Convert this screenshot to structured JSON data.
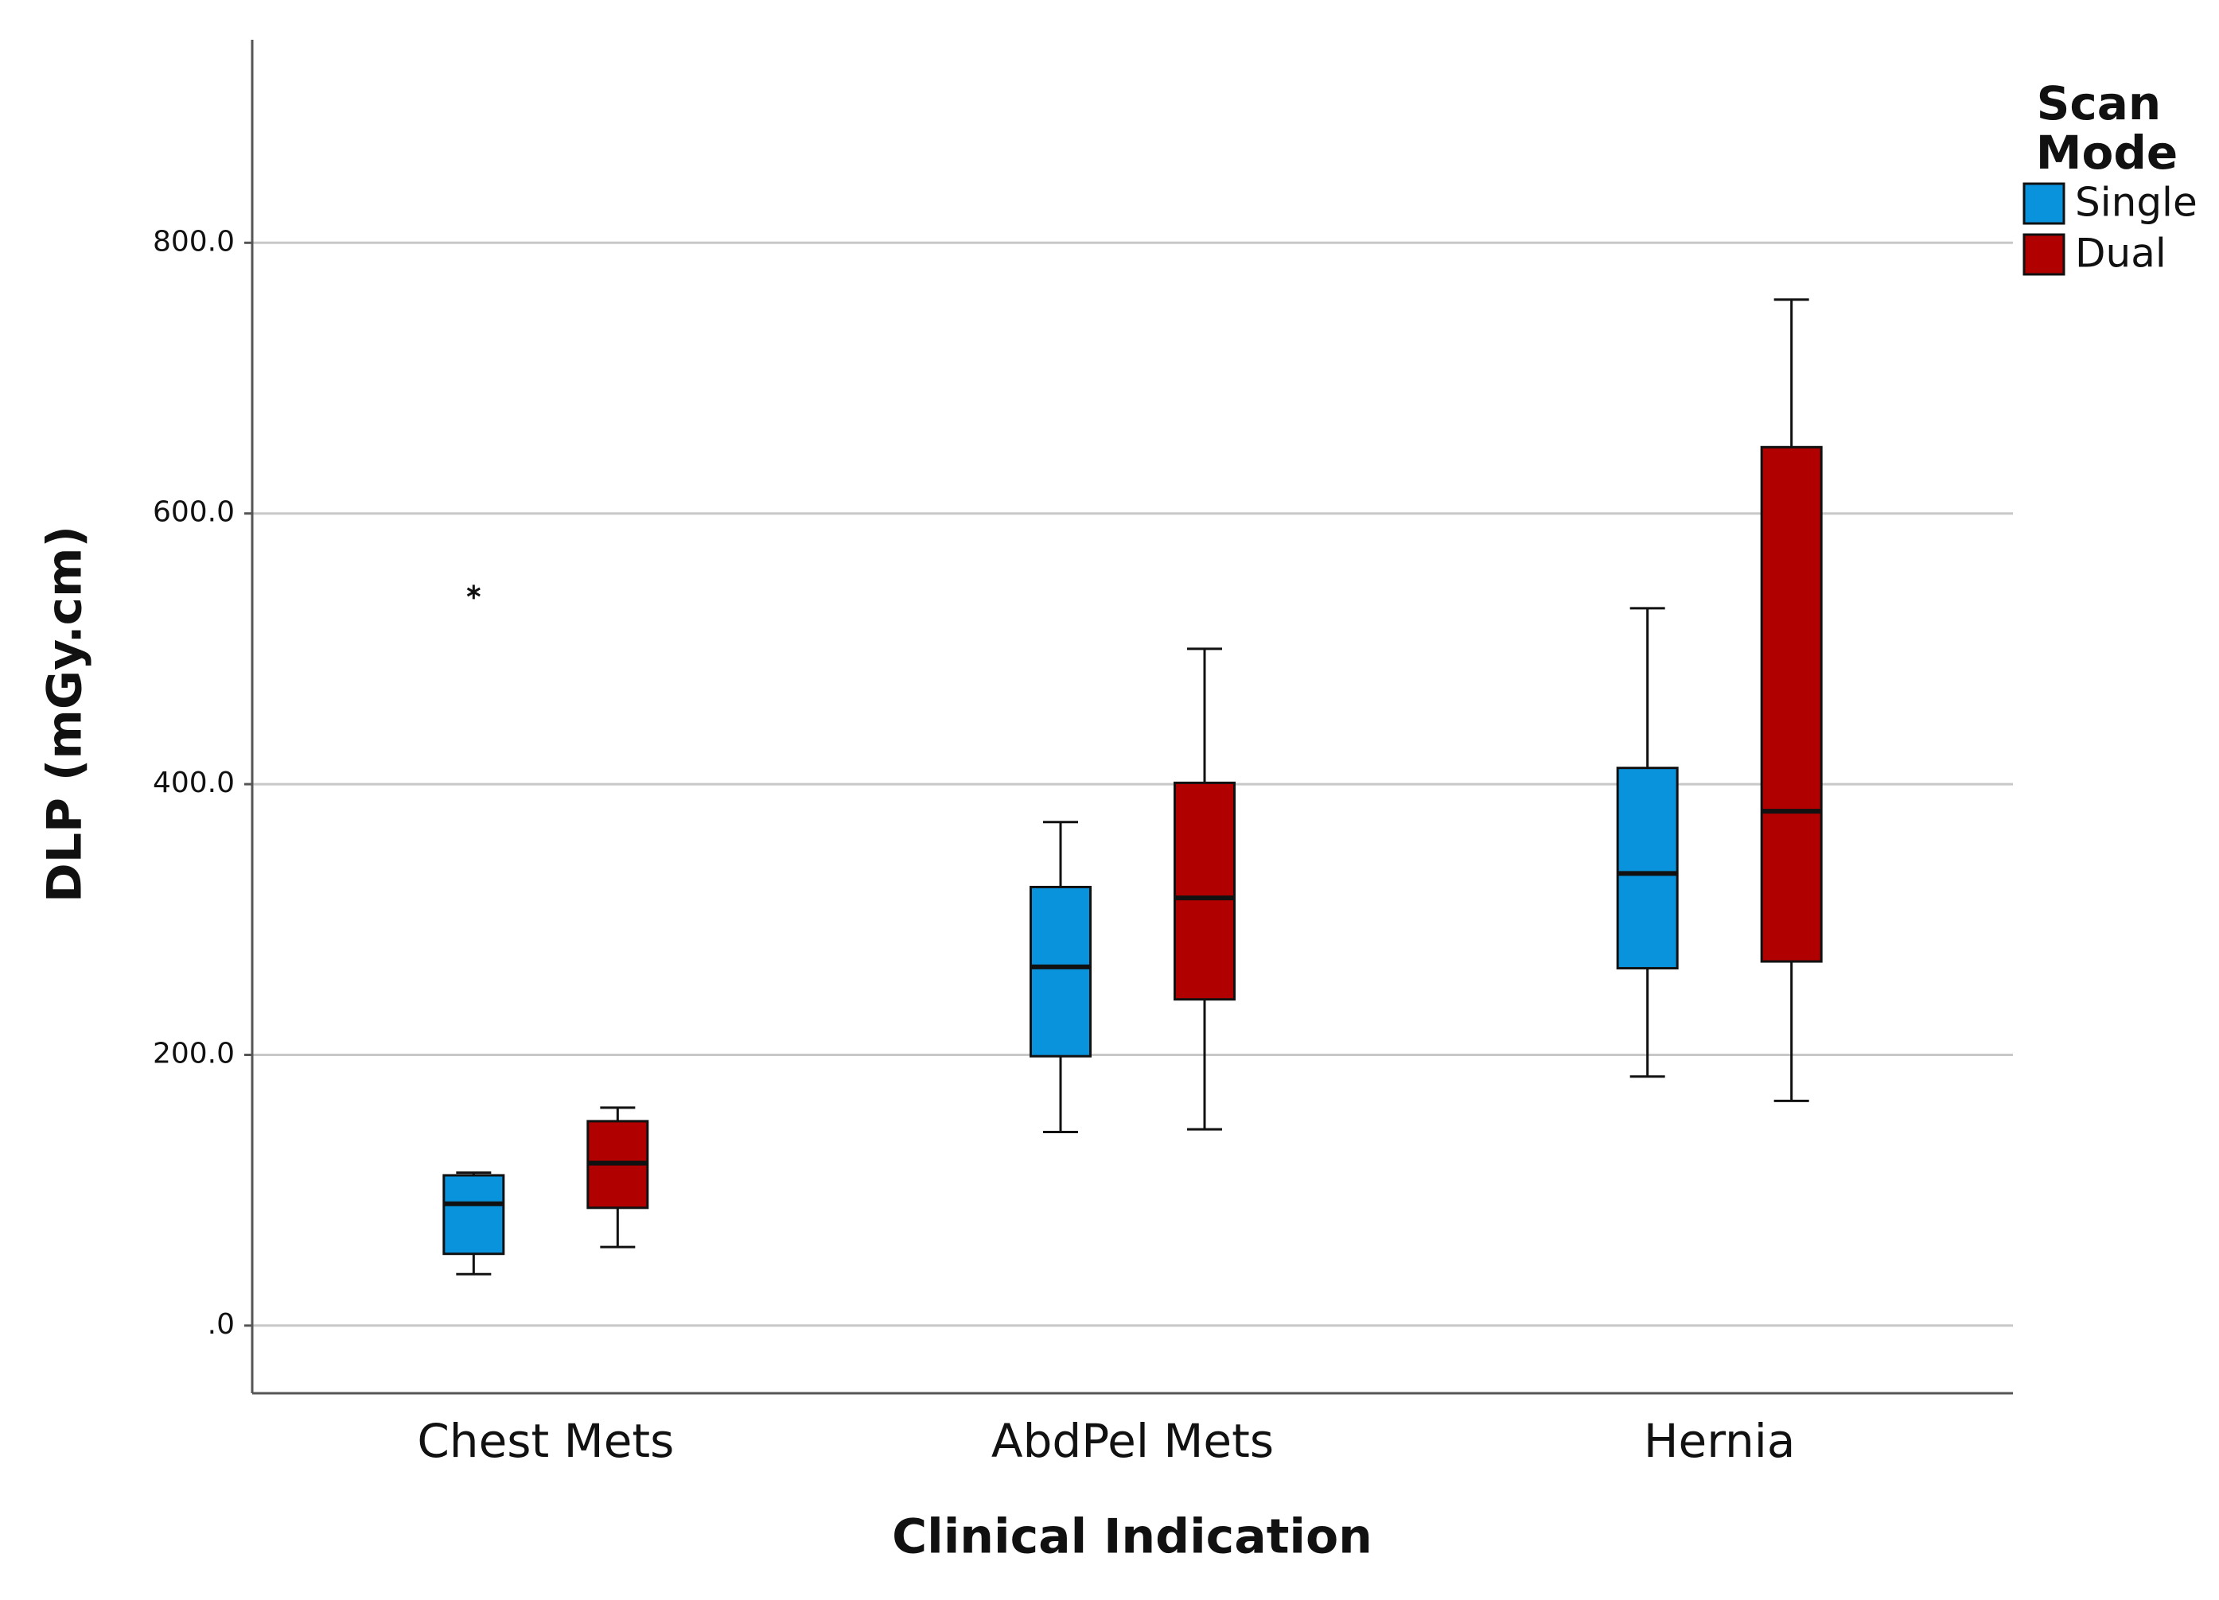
{
  "chart_data": {
    "type": "box",
    "x_label": "Clinical Indication",
    "y_label": "DLP (mGy.cm)",
    "legend_title": "Scan Mode",
    "legend_position": "outside-right-top",
    "categories": [
      "Chest Mets",
      "AbdPel Mets",
      "Hernia"
    ],
    "ylim": [
      -50,
      950
    ],
    "yticks": [
      {
        "value": 0,
        "label": ".0"
      },
      {
        "value": 200,
        "label": "200.0"
      },
      {
        "value": 400,
        "label": "400.0"
      },
      {
        "value": 600,
        "label": "600.0"
      },
      {
        "value": 800,
        "label": "800.0"
      }
    ],
    "grid": true,
    "series": [
      {
        "name": "Single",
        "color": "#0a93dd",
        "values": [
          {
            "min": 38,
            "q1": 53,
            "median": 90,
            "q3": 111,
            "max": 113
          },
          {
            "min": 143,
            "q1": 199,
            "median": 265,
            "q3": 324,
            "max": 372
          },
          {
            "min": 184,
            "q1": 264,
            "median": 334,
            "q3": 412,
            "max": 530
          }
        ],
        "outliers": [
          [
            542
          ],
          [],
          []
        ]
      },
      {
        "name": "Dual",
        "color": "#b00000",
        "values": [
          {
            "min": 58,
            "q1": 87,
            "median": 120,
            "q3": 151,
            "max": 161
          },
          {
            "min": 145,
            "q1": 241,
            "median": 316,
            "q3": 401,
            "max": 500
          },
          {
            "min": 166,
            "q1": 269,
            "median": 380,
            "q3": 649,
            "max": 758
          }
        ],
        "outliers": [
          [],
          [],
          []
        ]
      }
    ]
  }
}
